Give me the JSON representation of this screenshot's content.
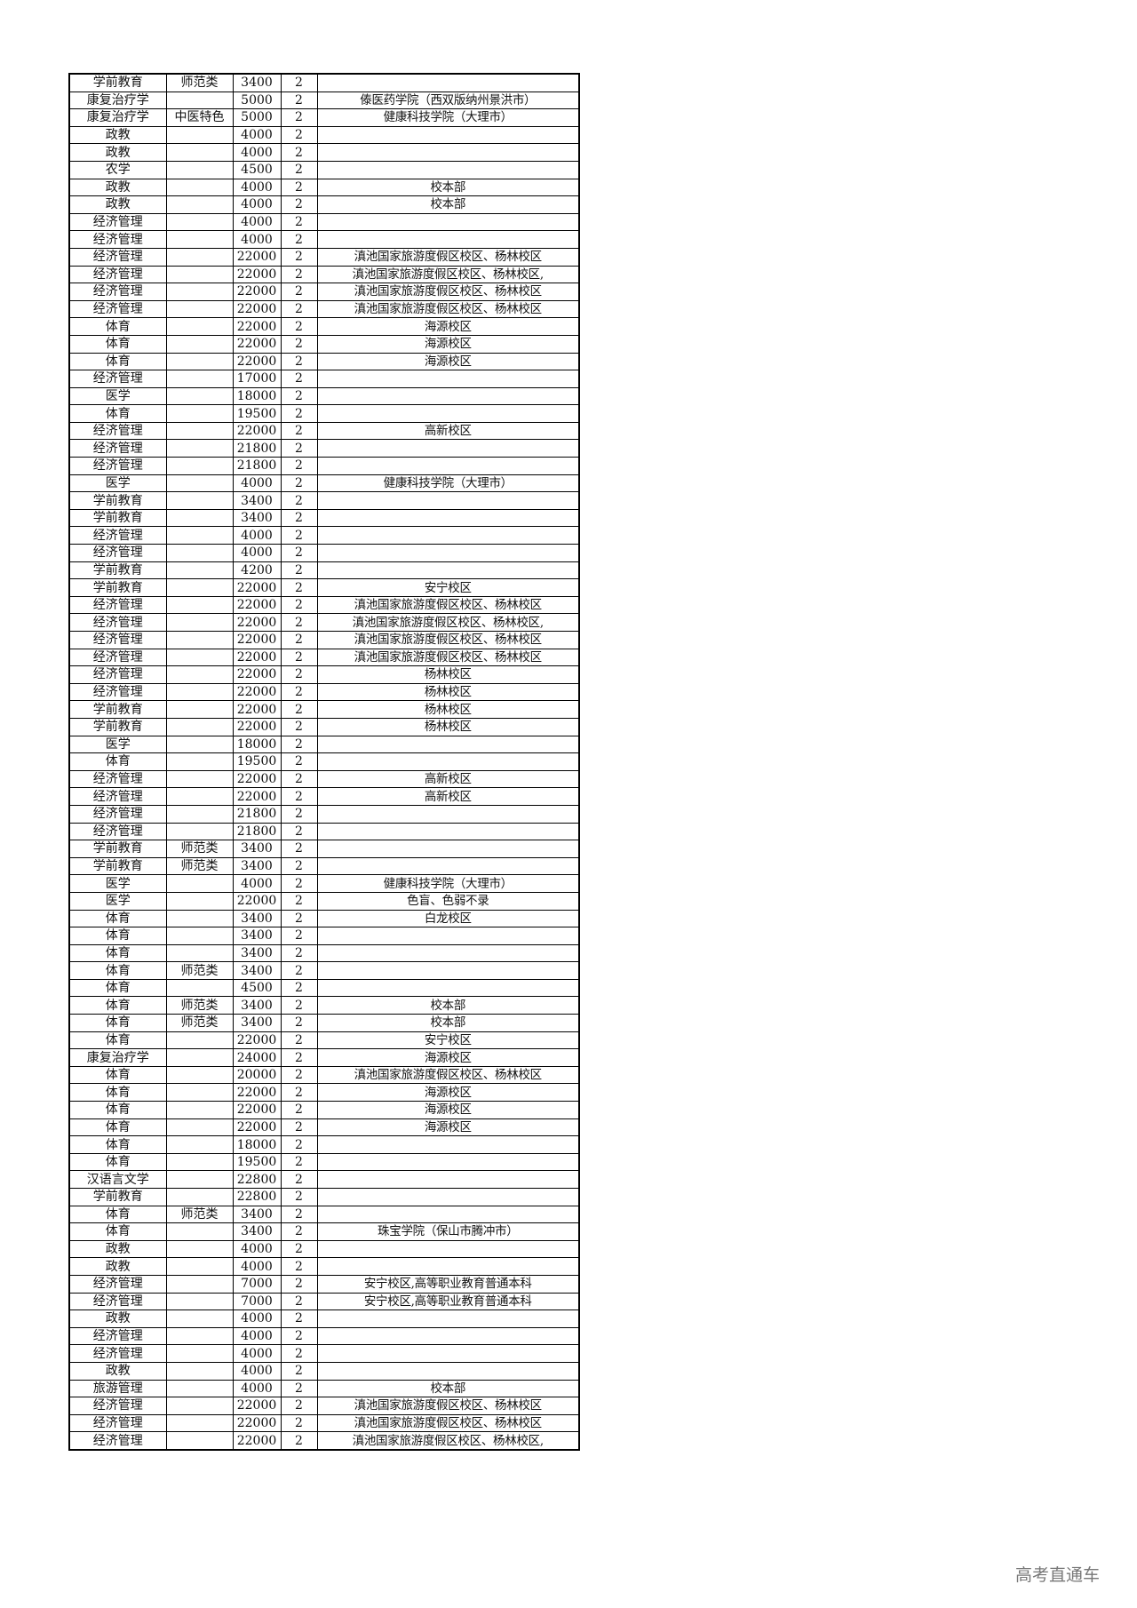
{
  "watermark": "高考直通车",
  "table": {
    "rows": [
      [
        "学前教育",
        "师范类",
        "3400",
        "2",
        ""
      ],
      [
        "康复治疗学",
        "",
        "5000",
        "2",
        "傣医药学院（西双版纳州景洪市）"
      ],
      [
        "康复治疗学",
        "中医特色",
        "5000",
        "2",
        "健康科技学院（大理市）"
      ],
      [
        "政教",
        "",
        "4000",
        "2",
        ""
      ],
      [
        "政教",
        "",
        "4000",
        "2",
        ""
      ],
      [
        "农学",
        "",
        "4500",
        "2",
        ""
      ],
      [
        "政教",
        "",
        "4000",
        "2",
        "校本部"
      ],
      [
        "政教",
        "",
        "4000",
        "2",
        "校本部"
      ],
      [
        "经济管理",
        "",
        "4000",
        "2",
        ""
      ],
      [
        "经济管理",
        "",
        "4000",
        "2",
        ""
      ],
      [
        "经济管理",
        "",
        "22000",
        "2",
        "滇池国家旅游度假区校区、杨林校区"
      ],
      [
        "经济管理",
        "",
        "22000",
        "2",
        "滇池国家旅游度假区校区、杨林校区,"
      ],
      [
        "经济管理",
        "",
        "22000",
        "2",
        "滇池国家旅游度假区校区、杨林校区"
      ],
      [
        "经济管理",
        "",
        "22000",
        "2",
        "滇池国家旅游度假区校区、杨林校区"
      ],
      [
        "体育",
        "",
        "22000",
        "2",
        "海源校区"
      ],
      [
        "体育",
        "",
        "22000",
        "2",
        "海源校区"
      ],
      [
        "体育",
        "",
        "22000",
        "2",
        "海源校区"
      ],
      [
        "经济管理",
        "",
        "17000",
        "2",
        ""
      ],
      [
        "医学",
        "",
        "18000",
        "2",
        ""
      ],
      [
        "体育",
        "",
        "19500",
        "2",
        ""
      ],
      [
        "经济管理",
        "",
        "22000",
        "2",
        "高新校区"
      ],
      [
        "经济管理",
        "",
        "21800",
        "2",
        ""
      ],
      [
        "经济管理",
        "",
        "21800",
        "2",
        ""
      ],
      [
        "医学",
        "",
        "4000",
        "2",
        "健康科技学院（大理市）"
      ],
      [
        "学前教育",
        "",
        "3400",
        "2",
        ""
      ],
      [
        "学前教育",
        "",
        "3400",
        "2",
        ""
      ],
      [
        "经济管理",
        "",
        "4000",
        "2",
        ""
      ],
      [
        "经济管理",
        "",
        "4000",
        "2",
        ""
      ],
      [
        "学前教育",
        "",
        "4200",
        "2",
        ""
      ],
      [
        "学前教育",
        "",
        "22000",
        "2",
        "安宁校区"
      ],
      [
        "经济管理",
        "",
        "22000",
        "2",
        "滇池国家旅游度假区校区、杨林校区"
      ],
      [
        "经济管理",
        "",
        "22000",
        "2",
        "滇池国家旅游度假区校区、杨林校区,"
      ],
      [
        "经济管理",
        "",
        "22000",
        "2",
        "滇池国家旅游度假区校区、杨林校区"
      ],
      [
        "经济管理",
        "",
        "22000",
        "2",
        "滇池国家旅游度假区校区、杨林校区"
      ],
      [
        "经济管理",
        "",
        "22000",
        "2",
        "杨林校区"
      ],
      [
        "经济管理",
        "",
        "22000",
        "2",
        "杨林校区"
      ],
      [
        "学前教育",
        "",
        "22000",
        "2",
        "杨林校区"
      ],
      [
        "学前教育",
        "",
        "22000",
        "2",
        "杨林校区"
      ],
      [
        "医学",
        "",
        "18000",
        "2",
        ""
      ],
      [
        "体育",
        "",
        "19500",
        "2",
        ""
      ],
      [
        "经济管理",
        "",
        "22000",
        "2",
        "高新校区"
      ],
      [
        "经济管理",
        "",
        "22000",
        "2",
        "高新校区"
      ],
      [
        "经济管理",
        "",
        "21800",
        "2",
        ""
      ],
      [
        "经济管理",
        "",
        "21800",
        "2",
        ""
      ],
      [
        "学前教育",
        "师范类",
        "3400",
        "2",
        ""
      ],
      [
        "学前教育",
        "师范类",
        "3400",
        "2",
        ""
      ],
      [
        "医学",
        "",
        "4000",
        "2",
        "健康科技学院（大理市）"
      ],
      [
        "医学",
        "",
        "22000",
        "2",
        "色盲、色弱不录"
      ],
      [
        "体育",
        "",
        "3400",
        "2",
        "白龙校区"
      ],
      [
        "体育",
        "",
        "3400",
        "2",
        ""
      ],
      [
        "体育",
        "",
        "3400",
        "2",
        ""
      ],
      [
        "体育",
        "师范类",
        "3400",
        "2",
        ""
      ],
      [
        "体育",
        "",
        "4500",
        "2",
        ""
      ],
      [
        "体育",
        "师范类",
        "3400",
        "2",
        "校本部"
      ],
      [
        "体育",
        "师范类",
        "3400",
        "2",
        "校本部"
      ],
      [
        "体育",
        "",
        "22000",
        "2",
        "安宁校区"
      ],
      [
        "康复治疗学",
        "",
        "24000",
        "2",
        "海源校区"
      ],
      [
        "体育",
        "",
        "20000",
        "2",
        "滇池国家旅游度假区校区、杨林校区"
      ],
      [
        "体育",
        "",
        "22000",
        "2",
        "海源校区"
      ],
      [
        "体育",
        "",
        "22000",
        "2",
        "海源校区"
      ],
      [
        "体育",
        "",
        "22000",
        "2",
        "海源校区"
      ],
      [
        "体育",
        "",
        "18000",
        "2",
        ""
      ],
      [
        "体育",
        "",
        "19500",
        "2",
        ""
      ],
      [
        "汉语言文学",
        "",
        "22800",
        "2",
        ""
      ],
      [
        "学前教育",
        "",
        "22800",
        "2",
        ""
      ],
      [
        "体育",
        "师范类",
        "3400",
        "2",
        ""
      ],
      [
        "体育",
        "",
        "3400",
        "2",
        "珠宝学院（保山市腾冲市）"
      ],
      [
        "政教",
        "",
        "4000",
        "2",
        ""
      ],
      [
        "政教",
        "",
        "4000",
        "2",
        ""
      ],
      [
        "经济管理",
        "",
        "7000",
        "2",
        "安宁校区,高等职业教育普通本科"
      ],
      [
        "经济管理",
        "",
        "7000",
        "2",
        "安宁校区,高等职业教育普通本科"
      ],
      [
        "政教",
        "",
        "4000",
        "2",
        ""
      ],
      [
        "经济管理",
        "",
        "4000",
        "2",
        ""
      ],
      [
        "经济管理",
        "",
        "4000",
        "2",
        ""
      ],
      [
        "政教",
        "",
        "4000",
        "2",
        ""
      ],
      [
        "旅游管理",
        "",
        "4000",
        "2",
        "校本部"
      ],
      [
        "经济管理",
        "",
        "22000",
        "2",
        "滇池国家旅游度假区校区、杨林校区"
      ],
      [
        "经济管理",
        "",
        "22000",
        "2",
        "滇池国家旅游度假区校区、杨林校区"
      ],
      [
        "经济管理",
        "",
        "22000",
        "2",
        "滇池国家旅游度假区校区、杨林校区,"
      ]
    ]
  }
}
